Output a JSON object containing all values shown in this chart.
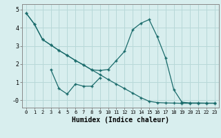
{
  "x": [
    0,
    1,
    2,
    3,
    4,
    5,
    6,
    7,
    8,
    9,
    10,
    11,
    12,
    13,
    14,
    15,
    16,
    17,
    18,
    19,
    20,
    21,
    22,
    23
  ],
  "line_diagonal": [
    4.8,
    4.2,
    3.35,
    3.05,
    2.75,
    2.48,
    2.2,
    1.95,
    1.68,
    1.42,
    1.15,
    0.9,
    0.65,
    0.4,
    0.15,
    -0.05,
    -0.12,
    -0.14,
    -0.15,
    -0.16,
    -0.16,
    -0.16,
    -0.16,
    -0.16
  ],
  "line_curve": [
    4.8,
    4.2,
    3.35,
    3.05,
    2.75,
    2.48,
    2.2,
    1.95,
    1.68,
    1.65,
    1.7,
    2.2,
    2.7,
    3.9,
    4.25,
    4.45,
    3.5,
    2.35,
    0.6,
    -0.1,
    -0.14,
    -0.14,
    -0.15,
    -0.15
  ],
  "line_middle_x": [
    3,
    4,
    5,
    6,
    7,
    8,
    9
  ],
  "line_middle_y": [
    1.7,
    0.65,
    0.35,
    0.9,
    0.78,
    0.78,
    1.25
  ],
  "bg_color": "#d8eeee",
  "grid_color": "#b8d8d8",
  "line_color": "#1a6b6b",
  "xlabel": "Humidex (Indice chaleur)",
  "ytick_vals": [
    0,
    1,
    2,
    3,
    4,
    5
  ],
  "ytick_labels": [
    "-0",
    "1",
    "2",
    "3",
    "4",
    "5"
  ],
  "ylim": [
    -0.4,
    5.3
  ],
  "xlim": [
    -0.5,
    23.5
  ]
}
